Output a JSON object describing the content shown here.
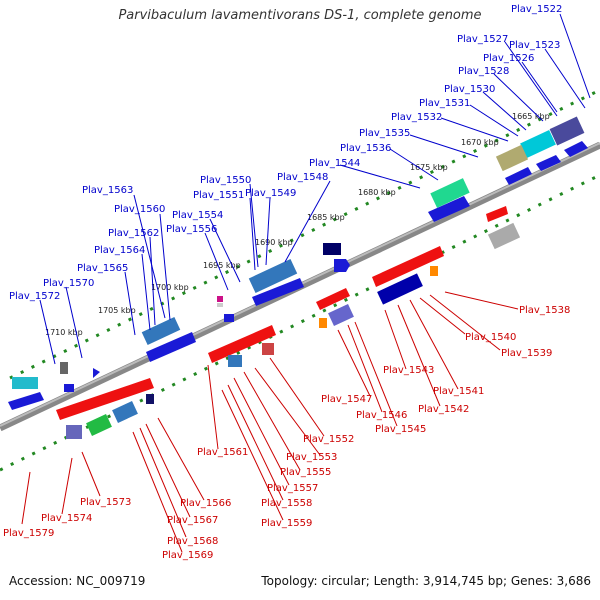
{
  "title": "Parvibaculum lavamentivorans DS-1, complete genome",
  "accession": "Accession: NC_009719",
  "summary": "Topology: circular; Length: 3,914,745 bp; Genes: 3,686",
  "ticks": [
    "1665 kbp",
    "1670 kbp",
    "1675 kbp",
    "1680 kbp",
    "1685 kbp",
    "1690 kbp",
    "1695 kbp",
    "1700 kbp",
    "1705 kbp",
    "1710 kbp"
  ],
  "forward_labels": [
    "Plav_1522",
    "Plav_1523",
    "Plav_1526",
    "Plav_1527",
    "Plav_1528",
    "Plav_1530",
    "Plav_1531",
    "Plav_1532",
    "Plav_1535",
    "Plav_1536",
    "Plav_1544",
    "Plav_1548",
    "Plav_1549",
    "Plav_1550",
    "Plav_1551",
    "Plav_1554",
    "Plav_1556",
    "Plav_1560",
    "Plav_1562",
    "Plav_1563",
    "Plav_1564",
    "Plav_1565",
    "Plav_1570",
    "Plav_1572"
  ],
  "reverse_labels": [
    "Plav_1538",
    "Plav_1539",
    "Plav_1540",
    "Plav_1541",
    "Plav_1542",
    "Plav_1543",
    "Plav_1545",
    "Plav_1546",
    "Plav_1547",
    "Plav_1552",
    "Plav_1553",
    "Plav_1555",
    "Plav_1557",
    "Plav_1558",
    "Plav_1559",
    "Plav_1561",
    "Plav_1566",
    "Plav_1567",
    "Plav_1568",
    "Plav_1569",
    "Plav_1573",
    "Plav_1574",
    "Plav_1579"
  ],
  "colors": {
    "forward": "#0000cc",
    "reverse": "#cc0000",
    "backbone": "#888888",
    "ticks": "#228822"
  }
}
